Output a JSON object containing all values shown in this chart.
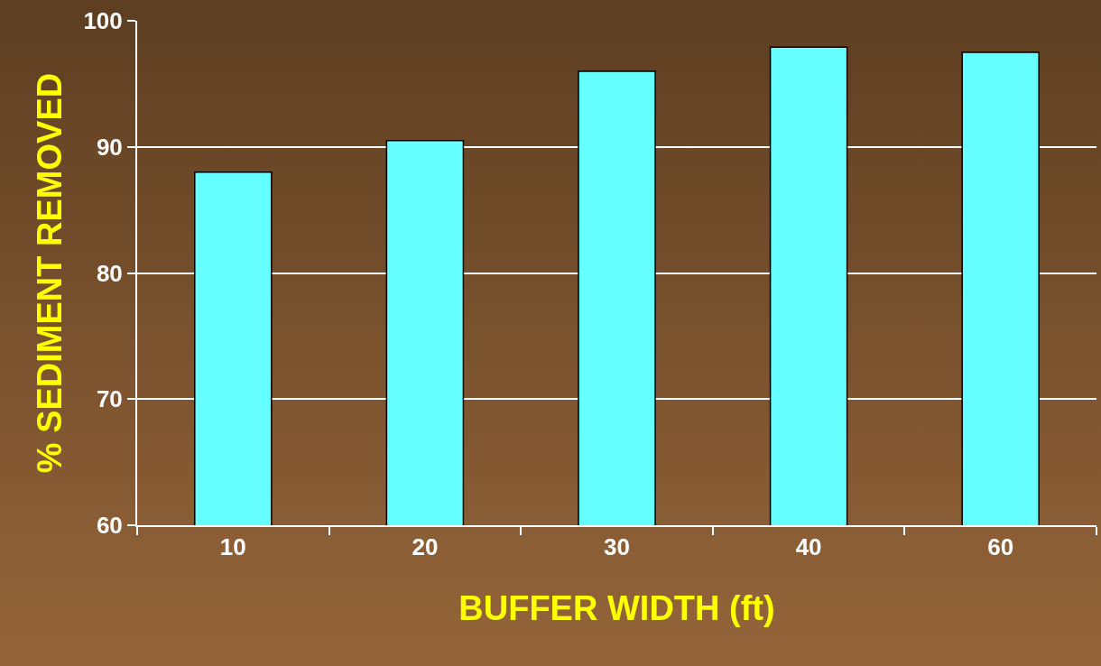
{
  "chart_data": {
    "type": "bar",
    "xlabel": "BUFFER WIDTH (ft)",
    "ylabel": "% SEDIMENT REMOVED",
    "categories": [
      "10",
      "20",
      "30",
      "40",
      "60"
    ],
    "values": [
      88,
      90.5,
      96,
      97.9,
      97.5
    ],
    "color": "#66ffff",
    "ylim": [
      60,
      100
    ],
    "yticks": [
      60,
      70,
      80,
      90,
      100
    ],
    "grid": "y",
    "legend": false
  }
}
